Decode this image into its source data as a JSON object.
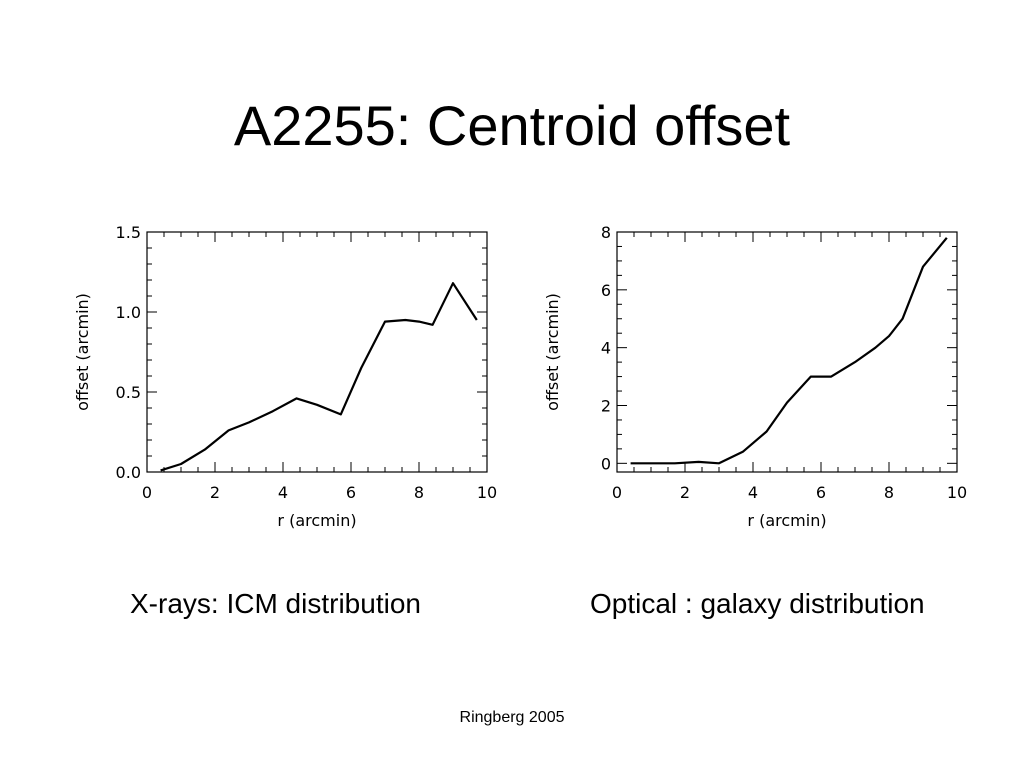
{
  "slide": {
    "title": "A2255: Centroid offset",
    "footer": "Ringberg 2005"
  },
  "chart_data": [
    {
      "type": "line",
      "caption": "X-rays: ICM distribution",
      "xlabel": "r (arcmin)",
      "ylabel": "offset (arcmin)",
      "xlim": [
        0,
        10
      ],
      "ylim": [
        0,
        1.5
      ],
      "xticks": [
        0,
        2,
        4,
        6,
        8,
        10
      ],
      "yticks": [
        0.0,
        0.5,
        1.0,
        1.5
      ],
      "xtick_labels": [
        "0",
        "2",
        "4",
        "6",
        "8",
        "10"
      ],
      "ytick_labels": [
        "0.0",
        "0.5",
        "1.0",
        "1.5"
      ],
      "x_minor_per_major": 4,
      "y_minor_per_major": 5,
      "grid": false,
      "series": [
        {
          "x": [
            0.4,
            1.0,
            1.7,
            2.4,
            3.0,
            3.7,
            4.4,
            5.0,
            5.7,
            6.3,
            7.0,
            7.6,
            8.0,
            8.4,
            9.0,
            9.7
          ],
          "y": [
            0.01,
            0.05,
            0.14,
            0.26,
            0.31,
            0.38,
            0.46,
            0.42,
            0.36,
            0.65,
            0.94,
            0.95,
            0.94,
            0.92,
            1.18,
            0.95
          ]
        }
      ]
    },
    {
      "type": "line",
      "caption": "Optical : galaxy distribution",
      "xlabel": "r (arcmin)",
      "ylabel": "offset (arcmin)",
      "xlim": [
        0,
        10
      ],
      "ylim": [
        -0.3,
        8.0
      ],
      "xticks": [
        0,
        2,
        4,
        6,
        8,
        10
      ],
      "yticks": [
        0,
        2,
        4,
        6,
        8
      ],
      "xtick_labels": [
        "0",
        "2",
        "4",
        "6",
        "8",
        "10"
      ],
      "ytick_labels": [
        "0",
        "2",
        "4",
        "6",
        "8"
      ],
      "x_minor_per_major": 4,
      "y_minor_per_major": 4,
      "grid": false,
      "series": [
        {
          "x": [
            0.4,
            1.0,
            1.7,
            2.4,
            3.0,
            3.7,
            4.4,
            5.0,
            5.7,
            6.3,
            7.0,
            7.6,
            8.0,
            8.4,
            9.0,
            9.7
          ],
          "y": [
            0.0,
            0.0,
            0.0,
            0.05,
            0.0,
            0.4,
            1.1,
            2.1,
            3.0,
            3.0,
            3.5,
            4.0,
            4.4,
            5.0,
            6.8,
            7.8
          ]
        }
      ]
    }
  ]
}
